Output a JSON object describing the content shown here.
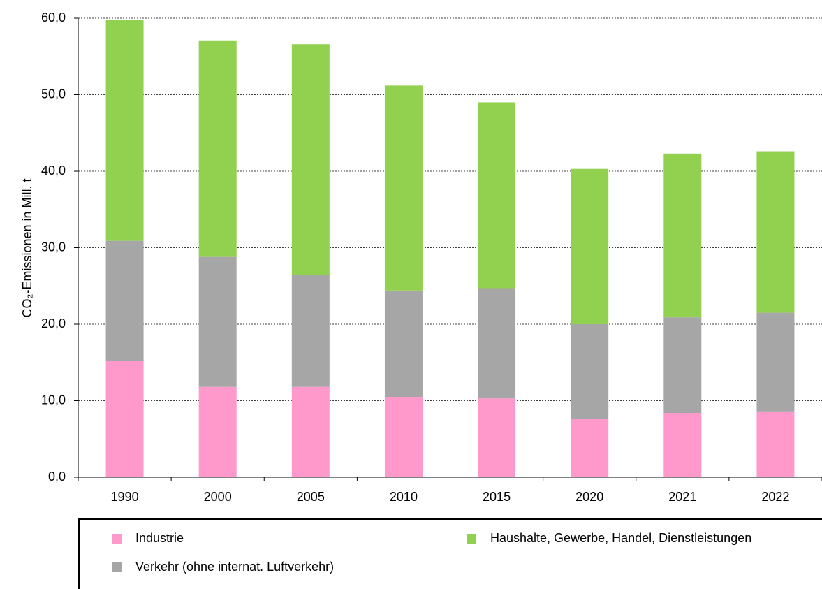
{
  "chart_data": {
    "type": "stacked-bar",
    "y_label": "CO₂-Emissionen in Mill. t",
    "categories": [
      "1990",
      "2000",
      "2005",
      "2010",
      "2015",
      "2020",
      "2021",
      "2022"
    ],
    "series": [
      {
        "name": "Industrie",
        "color": "#ff99cc",
        "values": [
          15.2,
          11.8,
          11.8,
          10.5,
          10.3,
          7.6,
          8.4,
          8.6
        ]
      },
      {
        "name": "Verkehr (ohne internat. Luftverkehr)",
        "color": "#a6a6a6",
        "values": [
          15.7,
          17.0,
          14.6,
          13.9,
          14.4,
          12.4,
          12.5,
          12.9
        ]
      },
      {
        "name": "Haushalte, Gewerbe, Handel, Dienstleistungen",
        "color": "#92d050",
        "values": [
          28.9,
          28.3,
          30.2,
          26.8,
          24.3,
          20.3,
          21.4,
          21.1
        ]
      }
    ],
    "ylim": [
      0,
      60
    ],
    "yticks": [
      {
        "value": 0,
        "label": "0,0"
      },
      {
        "value": 10,
        "label": "10,0"
      },
      {
        "value": 20,
        "label": "20,0"
      },
      {
        "value": 30,
        "label": "30,0"
      },
      {
        "value": 40,
        "label": "40,0"
      },
      {
        "value": 50,
        "label": "50,0"
      },
      {
        "value": 60,
        "label": "60,0"
      }
    ],
    "grid": true
  }
}
